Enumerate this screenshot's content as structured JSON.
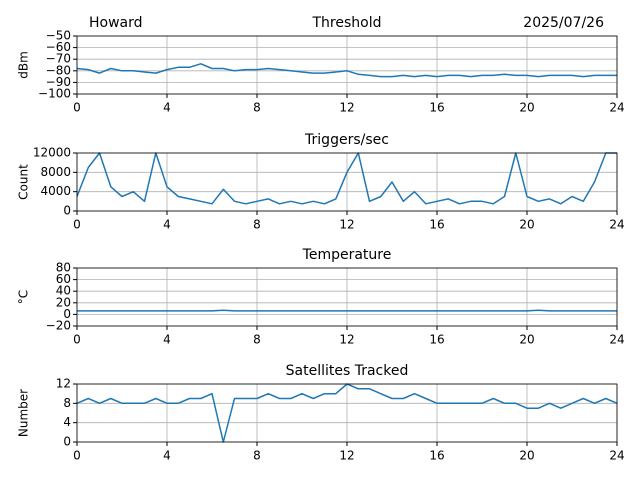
{
  "chart_data": [
    {
      "type": "line",
      "title_left": "Howard",
      "title": "Threshold",
      "title_right": "2025/07/26",
      "ylabel": "dBm",
      "x": [
        0,
        0.5,
        1,
        1.5,
        2,
        2.5,
        3,
        3.5,
        4,
        4.5,
        5,
        5.5,
        6,
        6.5,
        7,
        7.5,
        8,
        8.5,
        9,
        9.5,
        10,
        10.5,
        11,
        11.5,
        12,
        12.5,
        13,
        13.5,
        14,
        14.5,
        15,
        15.5,
        16,
        16.5,
        17,
        17.5,
        18,
        18.5,
        19,
        19.5,
        20,
        20.5,
        21,
        21.5,
        22,
        22.5,
        23,
        23.5,
        24
      ],
      "series": [
        {
          "name": "Threshold",
          "color": "#1f77b4",
          "values": [
            -78,
            -79,
            -82,
            -78,
            -80,
            -80,
            -81,
            -82,
            -79,
            -77,
            -77,
            -74,
            -78,
            -78,
            -80,
            -79,
            -79,
            -78,
            -79,
            -80,
            -81,
            -82,
            -82,
            -81,
            -80,
            -83,
            -84,
            -85,
            -85,
            -84,
            -85,
            -84,
            -85,
            -84,
            -84,
            -85,
            -84,
            -84,
            -83,
            -84,
            -84,
            -85,
            -84,
            -84,
            -84,
            -85,
            -84,
            -84,
            -84
          ]
        }
      ],
      "xlim": [
        0,
        24
      ],
      "xticks": [
        0,
        4,
        8,
        12,
        16,
        20,
        24
      ],
      "ylim": [
        -100,
        -50
      ],
      "yticks": [
        {
          "value": -100,
          "label": "−100"
        },
        {
          "value": -90,
          "label": "−90"
        },
        {
          "value": -80,
          "label": "−80"
        },
        {
          "value": -70,
          "label": "−70"
        },
        {
          "value": -60,
          "label": "−60"
        },
        {
          "value": -50,
          "label": "−50"
        }
      ],
      "grid": true
    },
    {
      "type": "line",
      "title": "Triggers/sec",
      "ylabel": "Count",
      "x": [
        0,
        0.5,
        1,
        1.5,
        2,
        2.5,
        3,
        3.5,
        4,
        4.5,
        5,
        5.5,
        6,
        6.5,
        7,
        7.5,
        8,
        8.5,
        9,
        9.5,
        10,
        10.5,
        11,
        11.5,
        12,
        12.5,
        13,
        13.5,
        14,
        14.5,
        15,
        15.5,
        16,
        16.5,
        17,
        17.5,
        18,
        18.5,
        19,
        19.5,
        20,
        20.5,
        21,
        21.5,
        22,
        22.5,
        23,
        23.5,
        24
      ],
      "series": [
        {
          "name": "Triggers/sec",
          "color": "#1f77b4",
          "values": [
            3000,
            9000,
            12000,
            5000,
            3000,
            4000,
            2000,
            12000,
            5000,
            3000,
            2500,
            2000,
            1500,
            4500,
            2000,
            1500,
            2000,
            2500,
            1500,
            2000,
            1500,
            2000,
            1500,
            2500,
            8000,
            12000,
            2000,
            3000,
            6000,
            2000,
            4000,
            1500,
            2000,
            2500,
            1500,
            2000,
            2000,
            1500,
            3000,
            12000,
            3000,
            2000,
            2500,
            1500,
            3000,
            2000,
            6000,
            12000,
            12000
          ]
        }
      ],
      "xlim": [
        0,
        24
      ],
      "xticks": [
        0,
        4,
        8,
        12,
        16,
        20,
        24
      ],
      "ylim": [
        0,
        12000
      ],
      "yticks": [
        0,
        4000,
        8000,
        12000
      ],
      "grid": true
    },
    {
      "type": "line",
      "title": "Temperature",
      "ylabel": "°C",
      "x": [
        0,
        0.5,
        1,
        1.5,
        2,
        2.5,
        3,
        3.5,
        4,
        4.5,
        5,
        5.5,
        6,
        6.5,
        7,
        7.5,
        8,
        8.5,
        9,
        9.5,
        10,
        10.5,
        11,
        11.5,
        12,
        12.5,
        13,
        13.5,
        14,
        14.5,
        15,
        15.5,
        16,
        16.5,
        17,
        17.5,
        18,
        18.5,
        19,
        19.5,
        20,
        20.5,
        21,
        21.5,
        22,
        22.5,
        23,
        23.5,
        24
      ],
      "series": [
        {
          "name": "Temperature",
          "color": "#1f77b4",
          "values": [
            6,
            6,
            6,
            6,
            6,
            6,
            6,
            6,
            6,
            6,
            6,
            6,
            6,
            7,
            6,
            6,
            6,
            6,
            6,
            6,
            6,
            6,
            6,
            6,
            6,
            6,
            6,
            6,
            6,
            6,
            6,
            6,
            6,
            6,
            6,
            6,
            6,
            6,
            6,
            6,
            6,
            7,
            6,
            6,
            6,
            6,
            6,
            6,
            6
          ]
        }
      ],
      "xlim": [
        0,
        24
      ],
      "xticks": [
        0,
        4,
        8,
        12,
        16,
        20,
        24
      ],
      "ylim": [
        -20,
        80
      ],
      "yticks": [
        {
          "value": -20,
          "label": "−20"
        },
        0,
        20,
        40,
        60,
        80
      ],
      "grid": true
    },
    {
      "type": "line",
      "title": "Satellites Tracked",
      "ylabel": "Number",
      "x": [
        0,
        0.5,
        1,
        1.5,
        2,
        2.5,
        3,
        3.5,
        4,
        4.5,
        5,
        5.5,
        6,
        6.5,
        7,
        7.5,
        8,
        8.5,
        9,
        9.5,
        10,
        10.5,
        11,
        11.5,
        12,
        12.5,
        13,
        13.5,
        14,
        14.5,
        15,
        15.5,
        16,
        16.5,
        17,
        17.5,
        18,
        18.5,
        19,
        19.5,
        20,
        20.5,
        21,
        21.5,
        22,
        22.5,
        23,
        23.5,
        24
      ],
      "series": [
        {
          "name": "Satellites Tracked",
          "color": "#1f77b4",
          "values": [
            8,
            9,
            8,
            9,
            8,
            8,
            8,
            9,
            8,
            8,
            9,
            9,
            10,
            0,
            9,
            9,
            9,
            10,
            9,
            9,
            10,
            9,
            10,
            10,
            12,
            11,
            11,
            10,
            9,
            9,
            10,
            9,
            8,
            8,
            8,
            8,
            8,
            9,
            8,
            8,
            7,
            7,
            8,
            7,
            8,
            9,
            8,
            9,
            8
          ]
        }
      ],
      "xlim": [
        0,
        24
      ],
      "xticks": [
        0,
        4,
        8,
        12,
        16,
        20,
        24
      ],
      "ylim": [
        0,
        12
      ],
      "yticks": [
        0,
        4,
        8,
        12
      ],
      "grid": true
    }
  ]
}
